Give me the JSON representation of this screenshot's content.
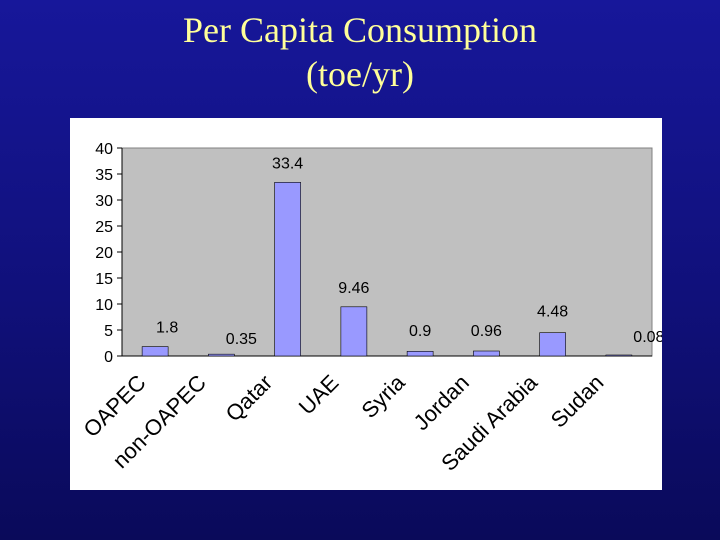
{
  "slide": {
    "title_line1": "Per Capita Consumption",
    "title_line2": "(toe/yr)"
  },
  "colors": {
    "background": "#14148c",
    "title": "#ffff99",
    "bar": "#9999ff",
    "plot_area": "#c0c0c0"
  },
  "chart_data": {
    "type": "bar",
    "title": "Per Capita Consumption (toe/yr)",
    "xlabel": "",
    "ylabel": "",
    "categories": [
      "OAPEC",
      "non-OAPEC",
      "Qatar",
      "UAE",
      "Syria",
      "Jordan",
      "Saudi Arabia",
      "Sudan"
    ],
    "values": [
      1.8,
      0.35,
      33.4,
      9.46,
      0.9,
      0.96,
      4.48,
      0.08
    ],
    "data_labels": [
      "1.8",
      "0.35",
      "33.4",
      "9.46",
      "0.9",
      "0.96",
      "4.48",
      "0.08"
    ],
    "ylim": [
      0,
      40
    ],
    "yticks": [
      0,
      5,
      10,
      15,
      20,
      25,
      30,
      35,
      40
    ],
    "grid": false,
    "legend": "none"
  }
}
